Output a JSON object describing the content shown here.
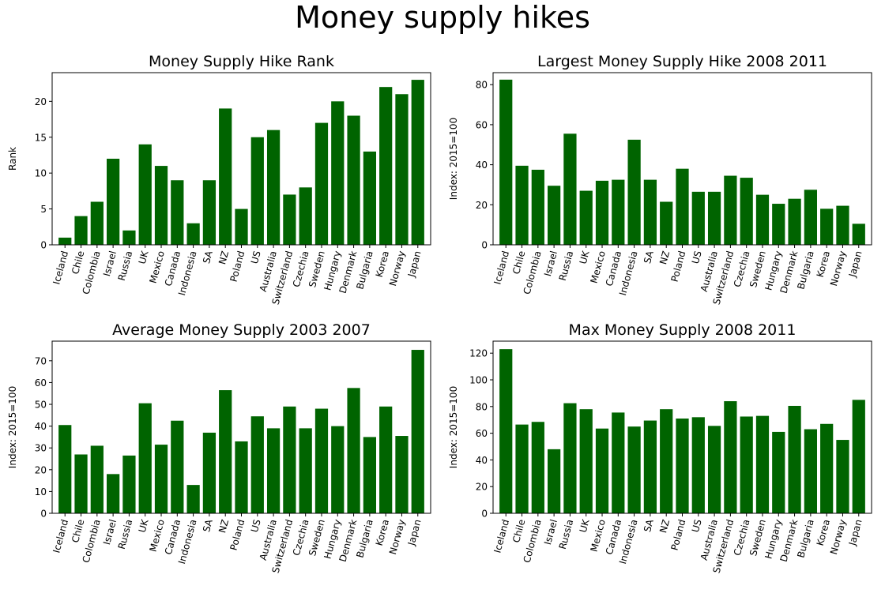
{
  "figure": {
    "title": "Money supply hikes"
  },
  "style": {
    "bar_color": "#006400"
  },
  "chart_data": [
    {
      "type": "bar",
      "title": "Money Supply Hike Rank",
      "ylabel": "Rank",
      "xlabel": "",
      "ylim": [
        0,
        24
      ],
      "yticks": [
        0,
        5,
        10,
        15,
        20
      ],
      "categories": [
        "Iceland",
        "Chile",
        "Colombia",
        "Israel",
        "Russia",
        "UK",
        "Mexico",
        "Canada",
        "Indonesia",
        "SA",
        "NZ",
        "Poland",
        "US",
        "Australia",
        "Switzerland",
        "Czechia",
        "Sweden",
        "Hungary",
        "Denmark",
        "Bulgaria",
        "Korea",
        "Norway",
        "Japan"
      ],
      "values": [
        1,
        4,
        6,
        12,
        2,
        14,
        11,
        9,
        3,
        9,
        19,
        5,
        15,
        16,
        7,
        8,
        17,
        20,
        18,
        13,
        22,
        21,
        23
      ]
    },
    {
      "type": "bar",
      "title": "Largest Money Supply Hike 2008 2011",
      "ylabel": "Index: 2015=100",
      "xlabel": "",
      "ylim": [
        0,
        86
      ],
      "yticks": [
        0,
        20,
        40,
        60,
        80
      ],
      "categories": [
        "Iceland",
        "Chile",
        "Colombia",
        "Israel",
        "Russia",
        "UK",
        "Mexico",
        "Canada",
        "Indonesia",
        "SA",
        "NZ",
        "Poland",
        "US",
        "Australia",
        "Switzerland",
        "Czechia",
        "Sweden",
        "Hungary",
        "Denmark",
        "Bulgaria",
        "Korea",
        "Norway",
        "Japan"
      ],
      "values": [
        82.5,
        39.5,
        37.5,
        29.5,
        55.5,
        27,
        32,
        32.5,
        52.5,
        32.5,
        21.5,
        38,
        26.5,
        26.5,
        34.5,
        33.5,
        25,
        20.5,
        23,
        27.5,
        18,
        19.5,
        10.5
      ]
    },
    {
      "type": "bar",
      "title": "Average Money Supply 2003 2007",
      "ylabel": "Index: 2015=100",
      "xlabel": "",
      "ylim": [
        0,
        79
      ],
      "yticks": [
        0,
        10,
        20,
        30,
        40,
        50,
        60,
        70
      ],
      "categories": [
        "Iceland",
        "Chile",
        "Colombia",
        "Israel",
        "Russia",
        "UK",
        "Mexico",
        "Canada",
        "Indonesia",
        "SA",
        "NZ",
        "Poland",
        "US",
        "Australia",
        "Switzerland",
        "Czechia",
        "Sweden",
        "Hungary",
        "Denmark",
        "Bulgaria",
        "Korea",
        "Norway",
        "Japan"
      ],
      "values": [
        40.5,
        27,
        31,
        18,
        26.5,
        50.5,
        31.5,
        42.5,
        13,
        37,
        56.5,
        33,
        44.5,
        39,
        49,
        39,
        48,
        40,
        57.5,
        35,
        49,
        35.5,
        75
      ]
    },
    {
      "type": "bar",
      "title": "Max Money Supply 2008 2011",
      "ylabel": "Index: 2015=100",
      "xlabel": "",
      "ylim": [
        0,
        129
      ],
      "yticks": [
        0,
        20,
        40,
        60,
        80,
        100,
        120
      ],
      "categories": [
        "Iceland",
        "Chile",
        "Colombia",
        "Israel",
        "Russia",
        "UK",
        "Mexico",
        "Canada",
        "Indonesia",
        "SA",
        "NZ",
        "Poland",
        "US",
        "Australia",
        "Switzerland",
        "Czechia",
        "Sweden",
        "Hungary",
        "Denmark",
        "Bulgaria",
        "Korea",
        "Norway",
        "Japan"
      ],
      "values": [
        123,
        66.5,
        68.5,
        48,
        82.5,
        78,
        63.5,
        75.5,
        65,
        69.5,
        78,
        71,
        72,
        65.5,
        84,
        72.5,
        73,
        61,
        80.5,
        63,
        67,
        55,
        85
      ]
    }
  ]
}
